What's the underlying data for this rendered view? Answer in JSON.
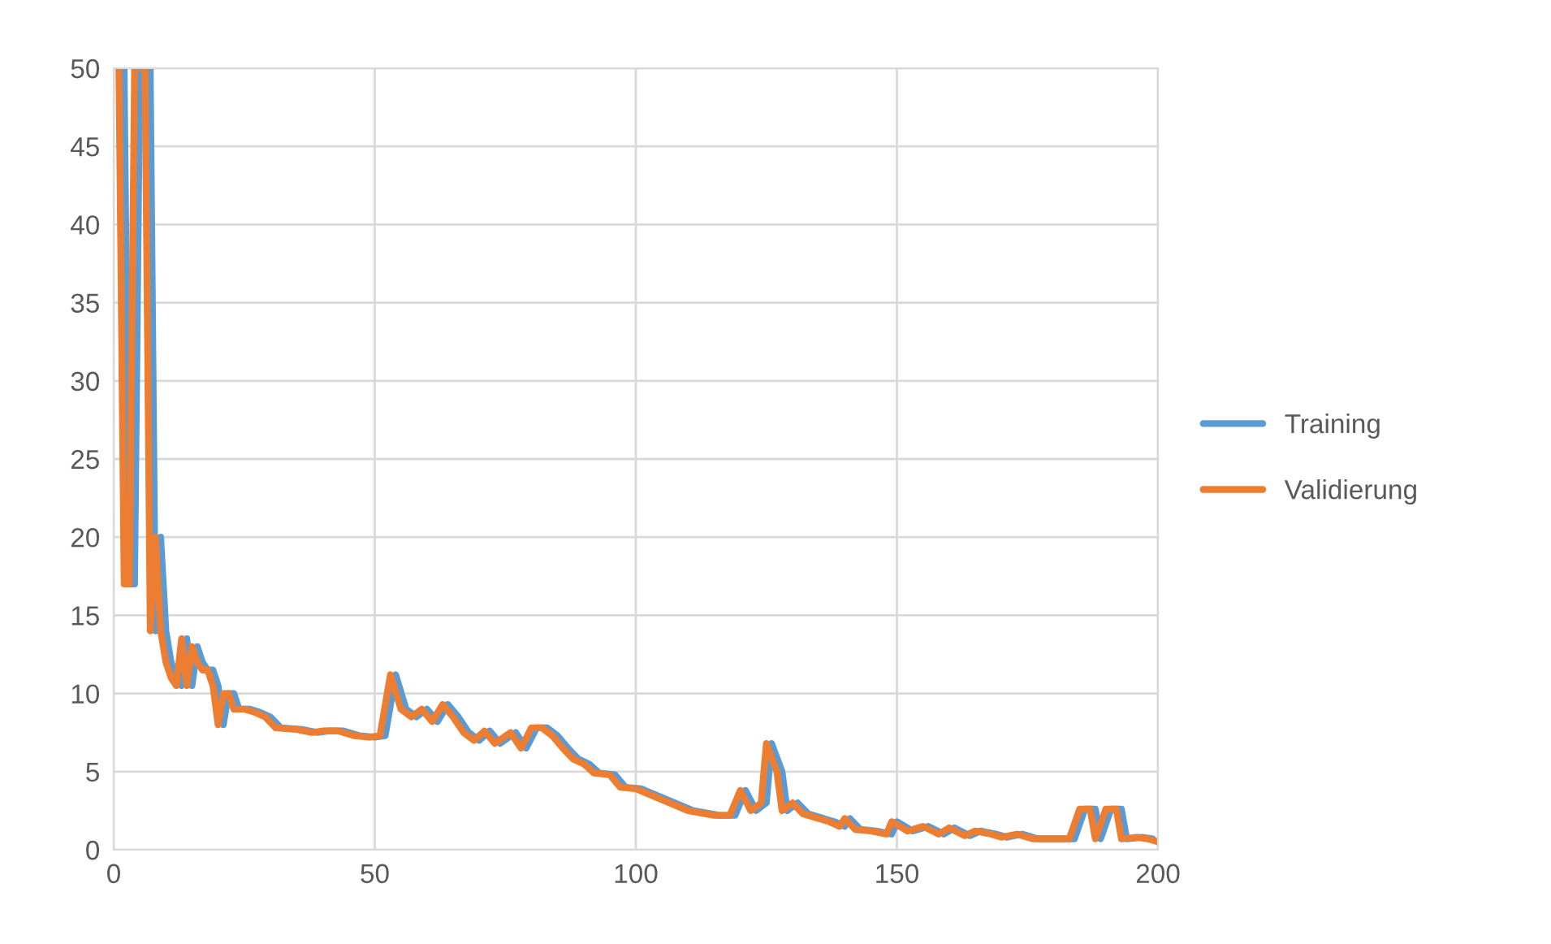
{
  "chart_data": {
    "type": "line",
    "xlim": [
      0,
      200
    ],
    "ylim": [
      0,
      50
    ],
    "xticks": [
      0,
      50,
      100,
      150,
      200
    ],
    "yticks": [
      0,
      5,
      10,
      15,
      20,
      25,
      30,
      35,
      40,
      45,
      50
    ],
    "grid": true,
    "legend": "right",
    "line_style": "solid",
    "marker": "none",
    "series": [
      {
        "name": "Training",
        "color": "#5b9bd5",
        "x": [
          2,
          3,
          4,
          5,
          6,
          7,
          8,
          9,
          10,
          11,
          12,
          13,
          14,
          15,
          16,
          17,
          18,
          19,
          20,
          21,
          22,
          23,
          24,
          26,
          28,
          30,
          32,
          36,
          39,
          41,
          44,
          47,
          50,
          52,
          54,
          56,
          58,
          60,
          62,
          64,
          66,
          68,
          70,
          72,
          74,
          77,
          79,
          81,
          83,
          85,
          87,
          89,
          91,
          93,
          96,
          98,
          101,
          106,
          111,
          116,
          119,
          121,
          123,
          125,
          126,
          128,
          129,
          131,
          133,
          136,
          138,
          140,
          141,
          143,
          146,
          149,
          150,
          153,
          156,
          159,
          161,
          164,
          166,
          169,
          171,
          174,
          177,
          181,
          184,
          186,
          188,
          189,
          191,
          193,
          194,
          197,
          199
        ],
        "values": [
          50,
          17,
          17,
          50,
          50,
          50,
          14,
          20,
          14,
          12,
          11,
          10.5,
          13.5,
          10.5,
          13,
          12,
          11.5,
          11.5,
          10.5,
          8,
          10,
          10,
          9,
          9,
          8.8,
          8.5,
          7.8,
          7.7,
          7.5,
          7.6,
          7.6,
          7.3,
          7.2,
          7.3,
          11.2,
          9,
          8.5,
          9,
          8.2,
          9.3,
          8.5,
          7.5,
          7,
          7.6,
          6.8,
          7.5,
          6.5,
          7.8,
          7.8,
          7.3,
          6.5,
          5.8,
          5.5,
          4.9,
          4.8,
          4,
          3.9,
          3.2,
          2.5,
          2.2,
          2.2,
          3.8,
          2.5,
          3,
          6.8,
          5,
          2.5,
          3,
          2.3,
          2,
          1.8,
          1.5,
          2,
          1.3,
          1.2,
          1,
          1.8,
          1.2,
          1.5,
          1,
          1.4,
          0.9,
          1.2,
          1,
          0.8,
          1,
          0.7,
          0.7,
          0.7,
          2.6,
          2.6,
          0.7,
          2.6,
          2.6,
          0.7,
          0.8,
          0.7
        ]
      },
      {
        "name": "Validierung",
        "color": "#ed7d31",
        "x": [
          1,
          2,
          3,
          4,
          5,
          6,
          7,
          8,
          9,
          10,
          11,
          12,
          13,
          14,
          15,
          16,
          17,
          18,
          19,
          20,
          21,
          22,
          23,
          25,
          27,
          29,
          31,
          35,
          38,
          40,
          43,
          46,
          49,
          51,
          53,
          55,
          57,
          59,
          61,
          63,
          65,
          67,
          69,
          71,
          73,
          76,
          78,
          80,
          82,
          84,
          86,
          88,
          90,
          92,
          95,
          97,
          100,
          105,
          110,
          115,
          118,
          120,
          122,
          124,
          125,
          127,
          128,
          130,
          132,
          135,
          137,
          139,
          140,
          142,
          145,
          148,
          149,
          152,
          155,
          158,
          160,
          163,
          165,
          168,
          170,
          173,
          176,
          180,
          183,
          185,
          187,
          188,
          190,
          192,
          193,
          196,
          198,
          200
        ],
        "values": [
          50,
          17,
          17,
          50,
          50,
          50,
          14,
          20,
          14,
          12,
          11,
          10.5,
          13.5,
          10.5,
          13,
          12,
          11.5,
          11.5,
          10.5,
          8,
          10,
          10,
          9,
          9,
          8.8,
          8.5,
          7.8,
          7.7,
          7.5,
          7.6,
          7.6,
          7.3,
          7.2,
          7.3,
          11.2,
          9,
          8.5,
          9,
          8.2,
          9.3,
          8.5,
          7.5,
          7,
          7.6,
          6.8,
          7.5,
          6.5,
          7.8,
          7.8,
          7.3,
          6.5,
          5.8,
          5.5,
          4.9,
          4.8,
          4,
          3.9,
          3.2,
          2.5,
          2.2,
          2.2,
          3.8,
          2.5,
          3,
          6.8,
          5,
          2.5,
          3,
          2.3,
          2,
          1.8,
          1.5,
          2,
          1.3,
          1.2,
          1,
          1.8,
          1.2,
          1.5,
          1,
          1.4,
          0.9,
          1.2,
          1,
          0.8,
          1,
          0.7,
          0.7,
          0.7,
          2.6,
          2.6,
          0.7,
          2.6,
          2.6,
          0.7,
          0.8,
          0.7,
          0.5
        ]
      }
    ]
  }
}
